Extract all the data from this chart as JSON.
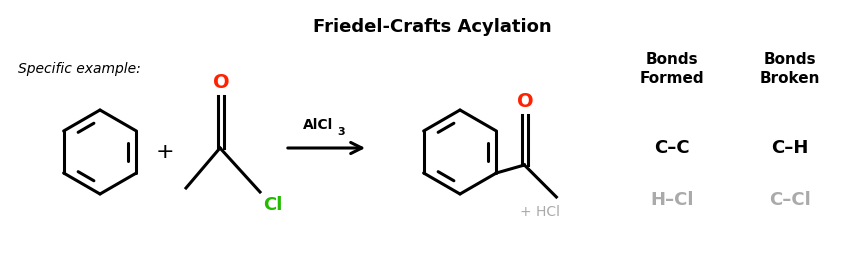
{
  "title": "Friedel-Crafts Acylation",
  "subtitle": "Specific example:",
  "catalyst": "AlCl",
  "catalyst_sub": "3",
  "byproduct": "+ HCl",
  "bonds_formed_header": "Bonds\nFormed",
  "bonds_broken_header": "Bonds\nBroken",
  "bonds_formed": [
    "C–C",
    "H–Cl"
  ],
  "bonds_broken": [
    "C–H",
    "C–Cl"
  ],
  "bonds_formed_colors": [
    "#000000",
    "#aaaaaa"
  ],
  "bonds_broken_colors": [
    "#000000",
    "#aaaaaa"
  ],
  "title_color": "#000000",
  "subtitle_color": "#000000",
  "oxygen_color": "#ff2200",
  "chlorine_color": "#22bb00",
  "arrow_color": "#000000",
  "background_color": "#ffffff",
  "byproduct_color": "#aaaaaa",
  "lw": 2.2
}
